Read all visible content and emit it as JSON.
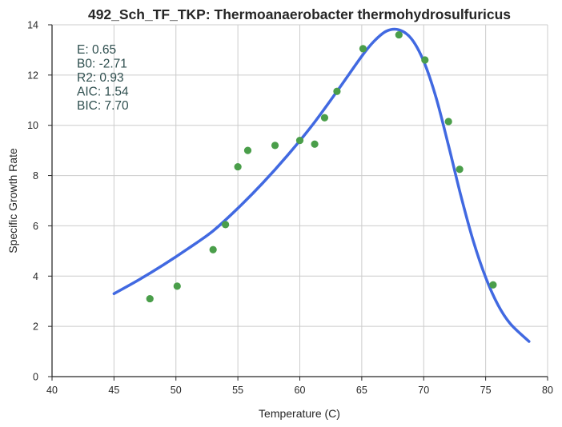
{
  "chart_data": {
    "type": "scatter",
    "title": "492_Sch_TF_TKP: Thermoanaerobacter thermohydrosulfuricus",
    "xlabel": "Temperature (C)",
    "ylabel": "Specific Growth Rate",
    "xlim": [
      40,
      80
    ],
    "ylim": [
      0,
      14
    ],
    "xticks": [
      "40",
      "45",
      "50",
      "55",
      "60",
      "65",
      "70",
      "75",
      "80"
    ],
    "yticks": [
      "0",
      "2",
      "4",
      "6",
      "8",
      "10",
      "12",
      "14"
    ],
    "grid": true,
    "colors": {
      "points": "#4a9e4a",
      "fit": "#4169e1",
      "stats_text": "#2f4f4f"
    },
    "stats": [
      "E:  0.65",
      "B0:  -2.71",
      "R2:  0.93",
      "AIC: 1.54",
      "BIC: 7.70"
    ],
    "series": [
      {
        "kind": "points",
        "x": [
          47.9,
          50.1,
          53.0,
          54.0,
          55.0,
          55.8,
          58.0,
          60.0,
          61.2,
          62.0,
          63.0,
          65.1,
          68.0,
          70.1,
          72.0,
          72.9,
          75.6
        ],
        "y": [
          3.1,
          3.6,
          5.05,
          6.05,
          8.35,
          9.0,
          9.2,
          9.4,
          9.25,
          10.3,
          11.35,
          13.05,
          13.6,
          12.6,
          10.15,
          8.25,
          3.65
        ]
      },
      {
        "kind": "fit",
        "x": [
          45,
          47,
          49,
          51,
          53,
          55,
          57,
          59,
          61,
          63,
          65,
          66,
          67,
          68,
          69,
          70,
          71,
          72,
          73,
          74,
          75,
          76,
          77,
          78.5
        ],
        "y": [
          3.3,
          3.85,
          4.45,
          5.1,
          5.8,
          6.7,
          7.7,
          8.8,
          10.0,
          11.35,
          12.75,
          13.35,
          13.75,
          13.8,
          13.45,
          12.55,
          11.1,
          9.2,
          7.2,
          5.4,
          3.95,
          2.85,
          2.1,
          1.4
        ]
      }
    ]
  }
}
